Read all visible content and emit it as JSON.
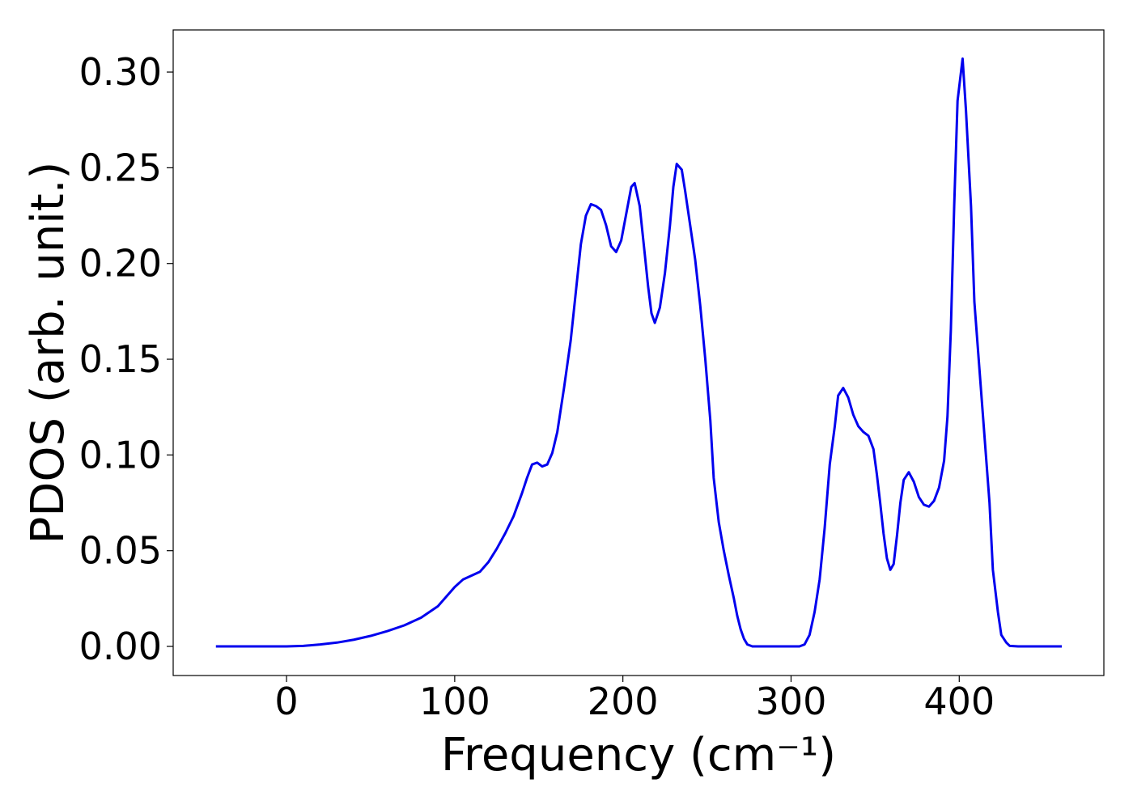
{
  "chart_data": {
    "type": "line",
    "x_label": "Frequency (cm⁻¹)",
    "y_label": "PDOS (arb. unit.)",
    "x": [
      -42,
      0,
      10,
      20,
      30,
      40,
      50,
      60,
      70,
      80,
      90,
      95,
      100,
      105,
      110,
      115,
      120,
      125,
      130,
      135,
      140,
      143,
      146,
      149,
      152,
      155,
      158,
      161,
      165,
      169,
      172,
      175,
      178,
      181,
      184,
      187,
      190,
      193,
      196,
      199,
      202,
      205,
      207,
      210,
      213,
      215,
      217,
      219,
      222,
      225,
      228,
      230,
      232,
      235,
      237,
      240,
      243,
      246,
      249,
      252,
      254,
      257,
      260,
      263,
      266,
      268,
      270,
      272,
      274,
      277,
      305,
      308,
      311,
      314,
      317,
      320,
      323,
      326,
      328,
      331,
      334,
      337,
      340,
      343,
      346,
      349,
      351,
      353,
      355,
      357,
      359,
      361,
      363,
      365,
      367,
      370,
      373,
      376,
      379,
      382,
      385,
      388,
      391,
      393,
      395,
      397,
      399,
      402,
      404,
      407,
      409,
      412,
      415,
      418,
      420,
      423,
      425,
      428,
      430,
      435,
      461
    ],
    "series": [
      {
        "color": "#0000ee",
        "values": [
          0,
          0,
          0.0003,
          0.001,
          0.002,
          0.0035,
          0.0055,
          0.008,
          0.011,
          0.015,
          0.021,
          0.026,
          0.031,
          0.035,
          0.037,
          0.039,
          0.044,
          0.051,
          0.059,
          0.068,
          0.08,
          0.088,
          0.095,
          0.096,
          0.094,
          0.095,
          0.101,
          0.112,
          0.135,
          0.16,
          0.185,
          0.21,
          0.225,
          0.231,
          0.23,
          0.228,
          0.22,
          0.209,
          0.206,
          0.212,
          0.226,
          0.24,
          0.242,
          0.23,
          0.205,
          0.188,
          0.174,
          0.169,
          0.177,
          0.195,
          0.22,
          0.24,
          0.252,
          0.249,
          0.238,
          0.22,
          0.202,
          0.178,
          0.15,
          0.118,
          0.088,
          0.065,
          0.05,
          0.037,
          0.025,
          0.016,
          0.009,
          0.004,
          0.001,
          0,
          0,
          0.001,
          0.006,
          0.018,
          0.035,
          0.062,
          0.095,
          0.115,
          0.131,
          0.135,
          0.13,
          0.121,
          0.115,
          0.112,
          0.11,
          0.103,
          0.09,
          0.075,
          0.059,
          0.046,
          0.04,
          0.043,
          0.058,
          0.075,
          0.087,
          0.091,
          0.086,
          0.078,
          0.074,
          0.073,
          0.076,
          0.083,
          0.097,
          0.12,
          0.165,
          0.23,
          0.285,
          0.307,
          0.28,
          0.23,
          0.18,
          0.145,
          0.11,
          0.075,
          0.04,
          0.018,
          0.006,
          0.002,
          0.0003,
          0,
          0
        ]
      }
    ],
    "xlim": [
      -67.4,
      486
    ],
    "ylim": [
      -0.0152,
      0.322
    ],
    "xticks": [
      0,
      100,
      200,
      300,
      400
    ],
    "yticks": [
      {
        "value": 0,
        "label": "0.00"
      },
      {
        "value": 0.05,
        "label": "0.05"
      },
      {
        "value": 0.1,
        "label": "0.10"
      },
      {
        "value": 0.15,
        "label": "0.15"
      },
      {
        "value": 0.2,
        "label": "0.20"
      },
      {
        "value": 0.25,
        "label": "0.25"
      },
      {
        "value": 0.3,
        "label": "0.30"
      }
    ]
  }
}
